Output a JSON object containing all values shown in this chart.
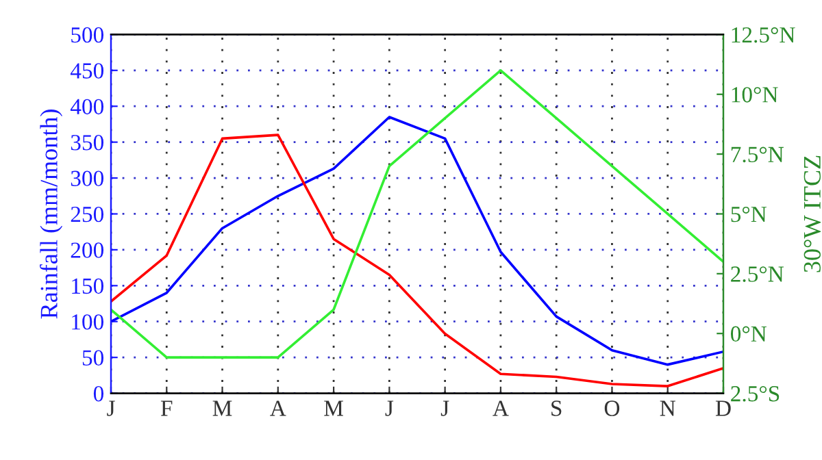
{
  "chart_data": {
    "type": "line",
    "ylabel": "Rainfall (mm/month)",
    "y2label": "30°W ITCZ",
    "categories": [
      "J",
      "F",
      "M",
      "A",
      "M",
      "J",
      "J",
      "A",
      "S",
      "O",
      "N",
      "D"
    ],
    "series": [
      {
        "color": "#0000ff",
        "values": [
          100,
          140,
          230,
          275,
          313,
          385,
          355,
          197,
          107,
          60,
          40,
          58
        ]
      },
      {
        "color": "#ff0000",
        "values": [
          128,
          192,
          355,
          360,
          215,
          165,
          83,
          27,
          23,
          13,
          10,
          35
        ]
      },
      {
        "color": "#33ee33",
        "axis": "y2",
        "values": [
          1,
          -1,
          -1,
          -1,
          1,
          7,
          9,
          11,
          9,
          7,
          5,
          3
        ]
      }
    ],
    "ylim": [
      0,
      500
    ],
    "yticks": [
      0,
      50,
      100,
      150,
      200,
      250,
      300,
      350,
      400,
      450,
      500
    ],
    "y2lim": [
      -2.5,
      12.5
    ],
    "y2ticks": [
      {
        "value": -2.5,
        "label": "2.5°S"
      },
      {
        "value": 0,
        "label": "0°N"
      },
      {
        "value": 2.5,
        "label": "2.5°N"
      },
      {
        "value": 5,
        "label": "5°N"
      },
      {
        "value": 7.5,
        "label": "7.5°N"
      },
      {
        "value": 10,
        "label": "10°N"
      },
      {
        "value": 12.5,
        "label": "12.5°N"
      }
    ],
    "grid": true,
    "legend": false,
    "marker": "none",
    "line_style": "solid"
  }
}
